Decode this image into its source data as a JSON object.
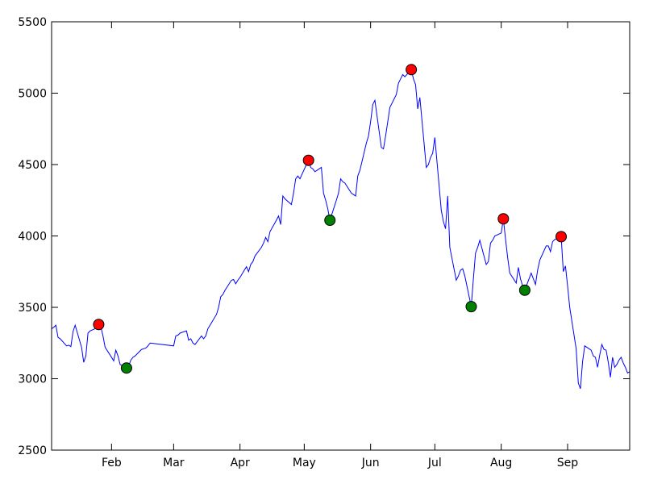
{
  "chart_data": {
    "type": "line",
    "title": "",
    "xlabel": "",
    "ylabel": "",
    "xlim": [
      "2016-01-04",
      "2016-09-30"
    ],
    "ylim": [
      2500,
      5500
    ],
    "grid": false,
    "legend": null,
    "x_ticks": [
      {
        "date": "2016-02-01",
        "label": "Feb"
      },
      {
        "date": "2016-03-01",
        "label": "Mar"
      },
      {
        "date": "2016-04-01",
        "label": "Apr"
      },
      {
        "date": "2016-05-01",
        "label": "May"
      },
      {
        "date": "2016-06-01",
        "label": "Jun"
      },
      {
        "date": "2016-07-01",
        "label": "Jul"
      },
      {
        "date": "2016-08-01",
        "label": "Aug"
      },
      {
        "date": "2016-09-01",
        "label": "Sep"
      }
    ],
    "y_ticks": [
      2500,
      3000,
      3500,
      4000,
      4500,
      5000,
      5500
    ],
    "series": [
      {
        "color": "#0000ff",
        "points": [
          [
            "2016-01-04",
            3350
          ],
          [
            "2016-01-05",
            3360
          ],
          [
            "2016-01-06",
            3375
          ],
          [
            "2016-01-07",
            3290
          ],
          [
            "2016-01-08",
            3280
          ],
          [
            "2016-01-11",
            3230
          ],
          [
            "2016-01-12",
            3235
          ],
          [
            "2016-01-13",
            3225
          ],
          [
            "2016-01-14",
            3330
          ],
          [
            "2016-01-15",
            3375
          ],
          [
            "2016-01-18",
            3220
          ],
          [
            "2016-01-19",
            3115
          ],
          [
            "2016-01-20",
            3160
          ],
          [
            "2016-01-21",
            3320
          ],
          [
            "2016-01-22",
            3335
          ],
          [
            "2016-01-25",
            3355
          ],
          [
            "2016-01-26",
            3380
          ],
          [
            "2016-01-27",
            3365
          ],
          [
            "2016-01-28",
            3300
          ],
          [
            "2016-01-29",
            3220
          ],
          [
            "2016-02-01",
            3150
          ],
          [
            "2016-02-02",
            3125
          ],
          [
            "2016-02-03",
            3200
          ],
          [
            "2016-02-04",
            3160
          ],
          [
            "2016-02-05",
            3100
          ],
          [
            "2016-02-08",
            3075
          ],
          [
            "2016-02-09",
            3090
          ],
          [
            "2016-02-10",
            3130
          ],
          [
            "2016-02-11",
            3150
          ],
          [
            "2016-02-12",
            3160
          ],
          [
            "2016-02-15",
            3205
          ],
          [
            "2016-02-16",
            3210
          ],
          [
            "2016-02-17",
            3215
          ],
          [
            "2016-02-18",
            3230
          ],
          [
            "2016-02-19",
            3250
          ],
          [
            "2016-03-01",
            3230
          ],
          [
            "2016-03-02",
            3300
          ],
          [
            "2016-03-03",
            3305
          ],
          [
            "2016-03-04",
            3320
          ],
          [
            "2016-03-07",
            3335
          ],
          [
            "2016-03-08",
            3270
          ],
          [
            "2016-03-09",
            3280
          ],
          [
            "2016-03-10",
            3250
          ],
          [
            "2016-03-11",
            3240
          ],
          [
            "2016-03-14",
            3300
          ],
          [
            "2016-03-15",
            3280
          ],
          [
            "2016-03-16",
            3300
          ],
          [
            "2016-03-17",
            3350
          ],
          [
            "2016-03-18",
            3375
          ],
          [
            "2016-03-21",
            3450
          ],
          [
            "2016-03-22",
            3500
          ],
          [
            "2016-03-23",
            3575
          ],
          [
            "2016-03-24",
            3590
          ],
          [
            "2016-03-25",
            3620
          ],
          [
            "2016-03-28",
            3690
          ],
          [
            "2016-03-29",
            3695
          ],
          [
            "2016-03-30",
            3665
          ],
          [
            "2016-03-31",
            3690
          ],
          [
            "2016-04-01",
            3710
          ],
          [
            "2016-04-04",
            3785
          ],
          [
            "2016-04-05",
            3750
          ],
          [
            "2016-04-06",
            3800
          ],
          [
            "2016-04-07",
            3820
          ],
          [
            "2016-04-08",
            3860
          ],
          [
            "2016-04-11",
            3920
          ],
          [
            "2016-04-12",
            3950
          ],
          [
            "2016-04-13",
            3990
          ],
          [
            "2016-04-14",
            3960
          ],
          [
            "2016-04-15",
            4030
          ],
          [
            "2016-04-18",
            4110
          ],
          [
            "2016-04-19",
            4140
          ],
          [
            "2016-04-20",
            4080
          ],
          [
            "2016-04-21",
            4280
          ],
          [
            "2016-04-22",
            4260
          ],
          [
            "2016-04-25",
            4220
          ],
          [
            "2016-04-26",
            4300
          ],
          [
            "2016-04-27",
            4400
          ],
          [
            "2016-04-28",
            4420
          ],
          [
            "2016-04-29",
            4400
          ],
          [
            "2016-05-02",
            4500
          ],
          [
            "2016-05-03",
            4530
          ],
          [
            "2016-05-04",
            4480
          ],
          [
            "2016-05-05",
            4470
          ],
          [
            "2016-05-06",
            4450
          ],
          [
            "2016-05-09",
            4480
          ],
          [
            "2016-05-10",
            4300
          ],
          [
            "2016-05-11",
            4250
          ],
          [
            "2016-05-12",
            4190
          ],
          [
            "2016-05-13",
            4110
          ],
          [
            "2016-05-16",
            4250
          ],
          [
            "2016-05-17",
            4300
          ],
          [
            "2016-05-18",
            4400
          ],
          [
            "2016-05-19",
            4380
          ],
          [
            "2016-05-20",
            4370
          ],
          [
            "2016-05-23",
            4300
          ],
          [
            "2016-05-24",
            4290
          ],
          [
            "2016-05-25",
            4280
          ],
          [
            "2016-05-26",
            4420
          ],
          [
            "2016-05-27",
            4460
          ],
          [
            "2016-05-30",
            4650
          ],
          [
            "2016-05-31",
            4700
          ],
          [
            "2016-06-01",
            4800
          ],
          [
            "2016-06-02",
            4920
          ],
          [
            "2016-06-03",
            4950
          ],
          [
            "2016-06-06",
            4620
          ],
          [
            "2016-06-07",
            4610
          ],
          [
            "2016-06-08",
            4700
          ],
          [
            "2016-06-09",
            4800
          ],
          [
            "2016-06-10",
            4900
          ],
          [
            "2016-06-13",
            4990
          ],
          [
            "2016-06-14",
            5070
          ],
          [
            "2016-06-15",
            5100
          ],
          [
            "2016-06-16",
            5130
          ],
          [
            "2016-06-17",
            5115
          ],
          [
            "2016-06-20",
            5165
          ],
          [
            "2016-06-21",
            5100
          ],
          [
            "2016-06-22",
            5060
          ],
          [
            "2016-06-23",
            4890
          ],
          [
            "2016-06-24",
            4970
          ],
          [
            "2016-06-27",
            4480
          ],
          [
            "2016-06-28",
            4500
          ],
          [
            "2016-06-29",
            4550
          ],
          [
            "2016-06-30",
            4580
          ],
          [
            "2016-07-01",
            4690
          ],
          [
            "2016-07-04",
            4180
          ],
          [
            "2016-07-05",
            4100
          ],
          [
            "2016-07-06",
            4050
          ],
          [
            "2016-07-07",
            4280
          ],
          [
            "2016-07-08",
            3920
          ],
          [
            "2016-07-11",
            3690
          ],
          [
            "2016-07-12",
            3720
          ],
          [
            "2016-07-13",
            3760
          ],
          [
            "2016-07-14",
            3770
          ],
          [
            "2016-07-15",
            3720
          ],
          [
            "2016-07-18",
            3505
          ],
          [
            "2016-07-19",
            3700
          ],
          [
            "2016-07-20",
            3880
          ],
          [
            "2016-07-21",
            3920
          ],
          [
            "2016-07-22",
            3970
          ],
          [
            "2016-07-25",
            3800
          ],
          [
            "2016-07-26",
            3820
          ],
          [
            "2016-07-27",
            3950
          ],
          [
            "2016-07-28",
            3970
          ],
          [
            "2016-07-29",
            4000
          ],
          [
            "2016-08-01",
            4020
          ],
          [
            "2016-08-02",
            4120
          ],
          [
            "2016-08-03",
            3980
          ],
          [
            "2016-08-04",
            3850
          ],
          [
            "2016-08-05",
            3740
          ],
          [
            "2016-08-08",
            3670
          ],
          [
            "2016-08-09",
            3780
          ],
          [
            "2016-08-10",
            3700
          ],
          [
            "2016-08-11",
            3650
          ],
          [
            "2016-08-12",
            3620
          ],
          [
            "2016-08-15",
            3740
          ],
          [
            "2016-08-16",
            3700
          ],
          [
            "2016-08-17",
            3660
          ],
          [
            "2016-08-18",
            3760
          ],
          [
            "2016-08-19",
            3830
          ],
          [
            "2016-08-22",
            3930
          ],
          [
            "2016-08-23",
            3930
          ],
          [
            "2016-08-24",
            3890
          ],
          [
            "2016-08-25",
            3960
          ],
          [
            "2016-08-26",
            3975
          ],
          [
            "2016-08-29",
            3995
          ],
          [
            "2016-08-30",
            3750
          ],
          [
            "2016-08-31",
            3790
          ],
          [
            "2016-09-01",
            3650
          ],
          [
            "2016-09-02",
            3500
          ],
          [
            "2016-09-05",
            3210
          ],
          [
            "2016-09-06",
            2970
          ],
          [
            "2016-09-07",
            2930
          ],
          [
            "2016-09-08",
            3120
          ],
          [
            "2016-09-09",
            3230
          ],
          [
            "2016-09-12",
            3200
          ],
          [
            "2016-09-13",
            3160
          ],
          [
            "2016-09-14",
            3150
          ],
          [
            "2016-09-15",
            3080
          ],
          [
            "2016-09-16",
            3165
          ],
          [
            "2016-09-17",
            3240
          ],
          [
            "2016-09-18",
            3205
          ],
          [
            "2016-09-19",
            3200
          ],
          [
            "2016-09-20",
            3115
          ],
          [
            "2016-09-21",
            3010
          ],
          [
            "2016-09-22",
            3150
          ],
          [
            "2016-09-23",
            3080
          ],
          [
            "2016-09-24",
            3100
          ],
          [
            "2016-09-25",
            3130
          ],
          [
            "2016-09-26",
            3150
          ],
          [
            "2016-09-27",
            3110
          ],
          [
            "2016-09-28",
            3080
          ],
          [
            "2016-09-29",
            3040
          ],
          [
            "2016-09-30",
            3050
          ]
        ]
      }
    ],
    "markers": [
      {
        "kind": "peak",
        "color": "#ff0000",
        "points": [
          [
            "2016-01-26",
            3380
          ],
          [
            "2016-05-03",
            4530
          ],
          [
            "2016-06-20",
            5165
          ],
          [
            "2016-08-02",
            4120
          ],
          [
            "2016-08-29",
            3995
          ]
        ]
      },
      {
        "kind": "trough",
        "color": "#008000",
        "points": [
          [
            "2016-02-08",
            3075
          ],
          [
            "2016-05-13",
            4110
          ],
          [
            "2016-07-18",
            3505
          ],
          [
            "2016-08-12",
            3620
          ]
        ]
      }
    ]
  }
}
